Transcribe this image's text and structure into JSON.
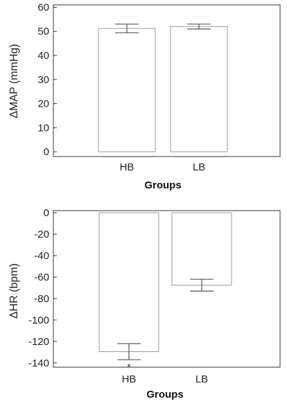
{
  "chart_data": [
    {
      "type": "bar",
      "categories": [
        "HB",
        "LB"
      ],
      "values": [
        51.2,
        52.0
      ],
      "errors": [
        1.8,
        1.0
      ],
      "xlabel": "Groups",
      "ylabel": "ΔMAP (mmHg)",
      "ylim": [
        -2,
        61
      ],
      "yticks": [
        0,
        10,
        20,
        30,
        40,
        50,
        60
      ],
      "annotations": [],
      "bar_color": "#ffffff",
      "edge_color": "#999999"
    },
    {
      "type": "bar",
      "categories": [
        "HB",
        "LB"
      ],
      "values": [
        -129.5,
        -67.5
      ],
      "errors": [
        7.5,
        5.5
      ],
      "xlabel": "Groups",
      "ylabel": "ΔHR (bpm)",
      "ylim": [
        -144,
        2
      ],
      "yticks": [
        0,
        -20,
        -40,
        -60,
        -80,
        -100,
        -120,
        -140
      ],
      "annotations": [
        {
          "category": "HB",
          "text": "*"
        }
      ],
      "bar_color": "#ffffff",
      "edge_color": "#999999"
    }
  ]
}
